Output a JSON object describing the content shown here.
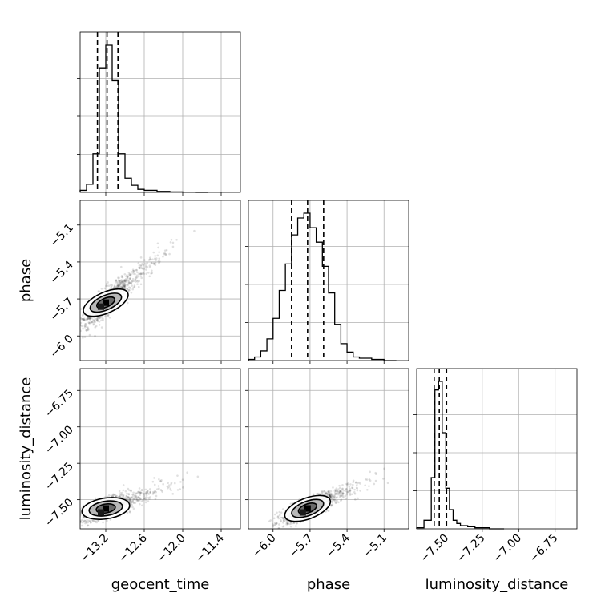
{
  "chart_data": {
    "type": "corner",
    "grid": true,
    "parameters": [
      "geocent_time",
      "phase",
      "luminosity_distance"
    ],
    "ranges": {
      "geocent_time": [
        -13.6,
        -11.1
      ],
      "phase": [
        -6.2,
        -4.9
      ],
      "luminosity_distance": [
        -7.7,
        -6.6
      ]
    },
    "ticks": {
      "geocent_time": {
        "values": [
          -13.2,
          -12.6,
          -12.0,
          -11.4
        ],
        "labels": [
          "−13.2",
          "−12.6",
          "−12.0",
          "−11.4"
        ]
      },
      "phase": {
        "values": [
          -6.0,
          -5.7,
          -5.4,
          -5.1
        ],
        "labels": [
          "−6.0",
          "−5.7",
          "−5.4",
          "−5.1"
        ]
      },
      "luminosity_distance": {
        "values": [
          -7.5,
          -7.25,
          -7.0,
          -6.75
        ],
        "labels": [
          "−7.50",
          "−7.25",
          "−7.00",
          "−6.75"
        ]
      }
    },
    "quantiles": {
      "geocent_time": [
        -13.33,
        -13.18,
        -13.01
      ],
      "phase": [
        -5.85,
        -5.72,
        -5.59
      ],
      "luminosity_distance": [
        -7.58,
        -7.545,
        -7.495
      ]
    },
    "histograms": {
      "geocent_time": {
        "edges": [
          -13.6,
          -13.5,
          -13.4,
          -13.3,
          -13.2,
          -13.1,
          -13.0,
          -12.9,
          -12.8,
          -12.7,
          -12.6,
          -12.5,
          -12.4,
          -12.2,
          -12.0,
          -11.8,
          -11.6
        ],
        "counts": [
          2,
          8,
          38,
          122,
          145,
          110,
          38,
          14,
          7,
          3,
          2,
          2,
          1,
          0.5,
          0.3,
          0
        ]
      },
      "phase": {
        "edges": [
          -6.2,
          -6.15,
          -6.1,
          -6.05,
          -6.0,
          -5.95,
          -5.9,
          -5.85,
          -5.8,
          -5.75,
          -5.7,
          -5.65,
          -5.6,
          -5.55,
          -5.5,
          -5.45,
          -5.4,
          -5.35,
          -5.3,
          -5.2,
          -5.1,
          -5.0
        ],
        "counts": [
          1,
          3,
          8,
          18,
          35,
          58,
          80,
          104,
          118,
          122,
          110,
          98,
          78,
          56,
          30,
          14,
          7,
          3,
          2,
          1,
          0
        ]
      },
      "luminosity_distance": {
        "edges": [
          -7.7,
          -7.65,
          -7.6,
          -7.575,
          -7.55,
          -7.525,
          -7.5,
          -7.475,
          -7.45,
          -7.425,
          -7.4,
          -7.35,
          -7.3,
          -7.2,
          -7.1
        ],
        "counts": [
          1,
          8,
          48,
          130,
          138,
          90,
          38,
          18,
          8,
          5,
          3,
          2,
          1,
          0
        ]
      }
    },
    "samples": {
      "geocent_time_phase": {
        "center": [
          -13.2,
          -5.73
        ],
        "slope": 0.85,
        "spread": 0.04,
        "n": 900
      },
      "geocent_time_luminosity_distance": {
        "center": [
          -13.2,
          -7.56
        ],
        "slope": 0.35,
        "spread": 0.03,
        "n": 900
      },
      "phase_luminosity_distance": {
        "center": [
          -5.72,
          -7.56
        ],
        "slope": 0.45,
        "spread": 0.028,
        "n": 900
      }
    }
  }
}
